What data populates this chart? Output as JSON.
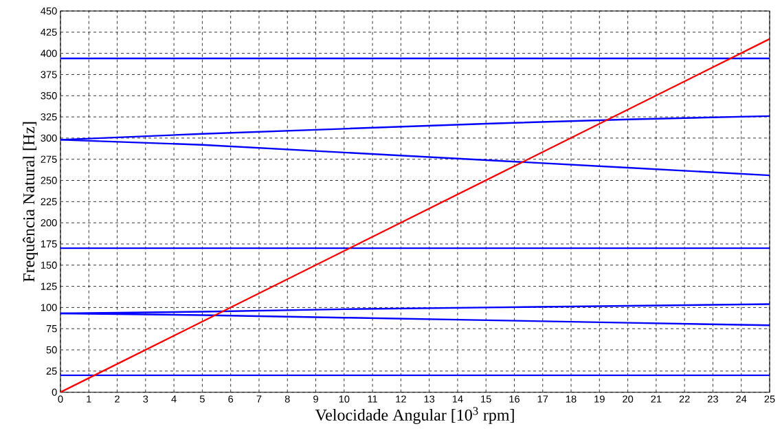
{
  "chart_data": {
    "type": "line",
    "xlabel": "Velocidade Angular [10$^{3}$ rpm]",
    "ylabel": "Frequência Natural [Hz]",
    "xlim": [
      0,
      25
    ],
    "ylim": [
      0,
      450
    ],
    "xticks": [
      0,
      1,
      2,
      3,
      4,
      5,
      6,
      7,
      8,
      9,
      10,
      11,
      12,
      13,
      14,
      15,
      16,
      17,
      18,
      19,
      20,
      21,
      22,
      23,
      24,
      25
    ],
    "yticks": [
      0,
      25,
      50,
      75,
      100,
      125,
      150,
      175,
      200,
      225,
      250,
      275,
      300,
      325,
      350,
      375,
      400,
      425,
      450
    ],
    "grid": true,
    "line_style": "solid",
    "marker": "none",
    "series": [
      {
        "color": "#0000ff",
        "x": [
          0,
          25
        ],
        "values": [
          20,
          20
        ]
      },
      {
        "color": "#0000ff",
        "x": [
          0,
          5,
          10,
          15,
          20,
          25
        ],
        "values": [
          93,
          91,
          88,
          85,
          82,
          79
        ]
      },
      {
        "color": "#0000ff",
        "x": [
          0,
          5,
          10,
          15,
          20,
          25
        ],
        "values": [
          93,
          95,
          98,
          100,
          102,
          104
        ]
      },
      {
        "color": "#0000ff",
        "x": [
          0,
          25
        ],
        "values": [
          170,
          170
        ]
      },
      {
        "color": "#0000ff",
        "x": [
          0,
          5,
          10,
          15,
          20,
          25
        ],
        "values": [
          298,
          292,
          283,
          274,
          265,
          256
        ]
      },
      {
        "color": "#0000ff",
        "x": [
          0,
          5,
          10,
          15,
          20,
          25
        ],
        "values": [
          298,
          305,
          311,
          317,
          322,
          326
        ]
      },
      {
        "color": "#0000ff",
        "x": [
          0,
          25
        ],
        "values": [
          394,
          394
        ]
      },
      {
        "color": "#ff0000",
        "x": [
          0,
          25
        ],
        "values": [
          0,
          417
        ]
      }
    ]
  }
}
